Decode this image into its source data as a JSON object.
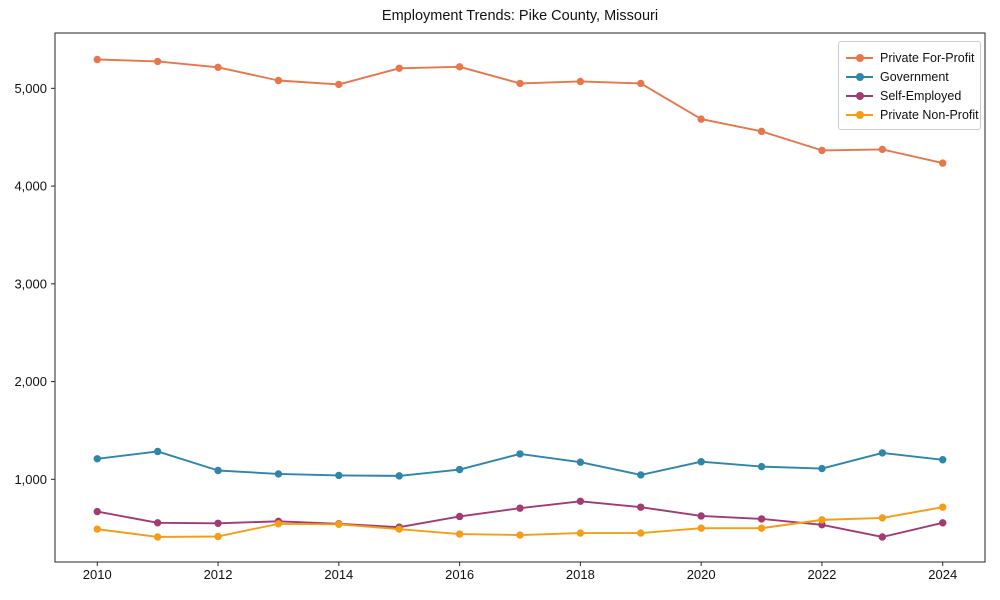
{
  "chart_data": {
    "type": "line",
    "title": "Employment Trends: Pike County, Missouri",
    "xlabel": "",
    "ylabel": "",
    "grid": false,
    "legend_position": "upper right",
    "marker": "circle",
    "x": [
      2010,
      2011,
      2012,
      2013,
      2014,
      2015,
      2016,
      2017,
      2018,
      2019,
      2020,
      2021,
      2022,
      2023,
      2024
    ],
    "series": [
      {
        "name": "Private For-Profit",
        "color": "#E8764B",
        "values": [
          5295,
          5275,
          5215,
          5080,
          5040,
          5205,
          5220,
          5050,
          5070,
          5050,
          4685,
          4560,
          4365,
          4375,
          4235
        ]
      },
      {
        "name": "Government",
        "color": "#2E86AB",
        "values": [
          1210,
          1285,
          1090,
          1055,
          1040,
          1035,
          1100,
          1260,
          1175,
          1045,
          1180,
          1130,
          1110,
          1270,
          1200
        ]
      },
      {
        "name": "Self-Employed",
        "color": "#A23B72",
        "values": [
          670,
          555,
          550,
          570,
          545,
          510,
          620,
          705,
          775,
          715,
          625,
          595,
          535,
          410,
          555
        ]
      },
      {
        "name": "Private Non-Profit",
        "color": "#F49D15",
        "values": [
          490,
          410,
          415,
          545,
          540,
          490,
          440,
          430,
          450,
          450,
          500,
          500,
          585,
          605,
          715
        ]
      }
    ],
    "xlim": [
      2009.3,
      2024.7
    ],
    "ylim": [
      154,
      5566
    ],
    "xticks": {
      "values": [
        2010,
        2012,
        2014,
        2016,
        2018,
        2020,
        2022,
        2024
      ],
      "labels": [
        "2010",
        "2012",
        "2014",
        "2016",
        "2018",
        "2020",
        "2022",
        "2024"
      ]
    },
    "yticks": {
      "values": [
        1000,
        2000,
        3000,
        4000,
        5000
      ],
      "labels": [
        "1,000",
        "2,000",
        "3,000",
        "4,000",
        "5,000"
      ]
    },
    "axis_color": "#262626",
    "tick_label_color": "#111111"
  }
}
